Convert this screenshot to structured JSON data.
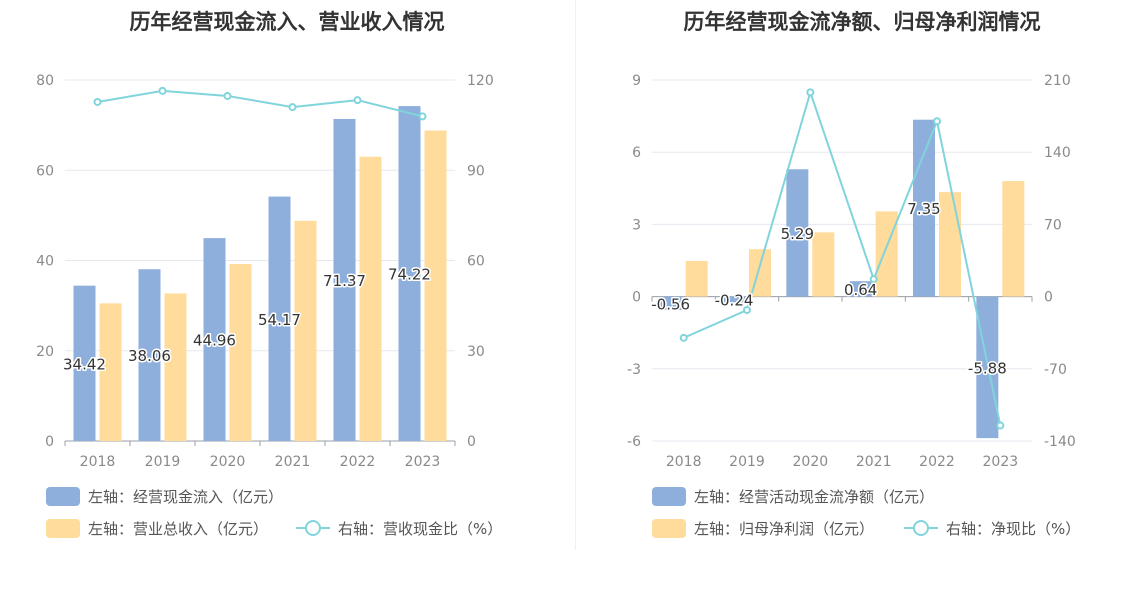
{
  "chart_data": [
    {
      "type": "bar",
      "title": "历年经营现金流入、营业收入情况",
      "categories": [
        "2018",
        "2019",
        "2020",
        "2021",
        "2022",
        "2023"
      ],
      "y_left": {
        "min": 0,
        "max": 80,
        "ticks": [
          "0",
          "20",
          "40",
          "60",
          "80"
        ]
      },
      "y_right": {
        "min": 0,
        "max": 120,
        "ticks": [
          "0",
          "30",
          "60",
          "90",
          "120"
        ]
      },
      "series": [
        {
          "name": "左轴：经营现金流入（亿元）",
          "kind": "bar",
          "axis": "left",
          "color": "#8eaedc",
          "values": [
            34.42,
            38.06,
            44.96,
            54.17,
            71.37,
            74.22
          ],
          "labels": [
            "34.42",
            "38.06",
            "44.96",
            "54.17",
            "71.37",
            "74.22"
          ]
        },
        {
          "name": "左轴：营业总收入（亿元）",
          "kind": "bar",
          "axis": "left",
          "color": "#ffdb9c",
          "values": [
            30.5,
            32.7,
            39.2,
            48.8,
            63.0,
            68.8
          ]
        },
        {
          "name": "右轴：营收现金比（%）",
          "kind": "line",
          "axis": "right",
          "color": "#80d4dc",
          "values": [
            112.7,
            116.4,
            114.7,
            111.0,
            113.3,
            107.9
          ]
        }
      ]
    },
    {
      "type": "bar",
      "title": "历年经营现金流净额、归母净利润情况",
      "categories": [
        "2018",
        "2019",
        "2020",
        "2021",
        "2022",
        "2023"
      ],
      "y_left": {
        "min": -6,
        "max": 9,
        "ticks": [
          "-6",
          "-3",
          "0",
          "3",
          "6",
          "9"
        ]
      },
      "y_right": {
        "min": -140,
        "max": 210,
        "ticks": [
          "-140",
          "-70",
          "0",
          "70",
          "140",
          "210"
        ]
      },
      "series": [
        {
          "name": "左轴：经营活动现金流净额（亿元）",
          "kind": "bar",
          "axis": "left",
          "color": "#8eaedc",
          "values": [
            -0.56,
            -0.24,
            5.29,
            0.64,
            7.35,
            -5.88
          ],
          "labels": [
            "-0.56",
            "-0.24",
            "5.29",
            "0.64",
            "7.35",
            "-5.88"
          ]
        },
        {
          "name": "左轴：归母净利润（亿元）",
          "kind": "bar",
          "axis": "left",
          "color": "#ffdb9c",
          "values": [
            1.48,
            1.97,
            2.67,
            3.54,
            4.34,
            4.8
          ]
        },
        {
          "name": "右轴：净现比（%）",
          "kind": "line",
          "axis": "right",
          "color": "#80d4dc",
          "values": [
            -40,
            -13,
            198,
            17,
            170,
            -125
          ]
        }
      ]
    }
  ]
}
